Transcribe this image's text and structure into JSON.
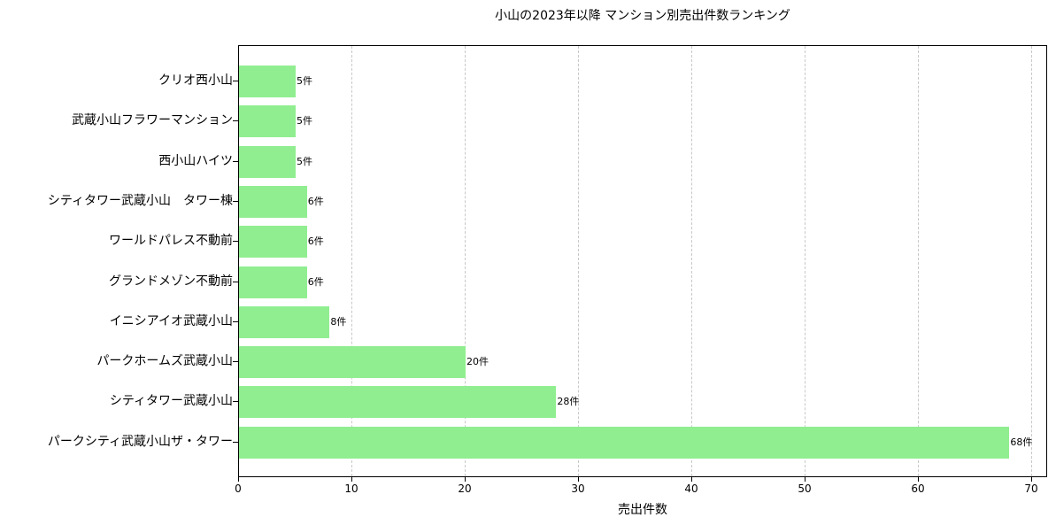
{
  "chart_data": {
    "type": "bar",
    "orientation": "horizontal",
    "title": "小山の2023年以降 マンション別売出件数ランキング",
    "xlabel": "売出件数",
    "ylabel": "",
    "xlim": [
      0,
      71.5
    ],
    "xticks": [
      0,
      10,
      20,
      30,
      40,
      50,
      60,
      70
    ],
    "grid": {
      "x": true,
      "style": "dashed"
    },
    "bar_color": "#90ee90",
    "value_suffix": "件",
    "categories": [
      "クリオ西小山",
      "武蔵小山フラワーマンション",
      "西小山ハイツ",
      "シティタワー武蔵小山　タワー棟",
      "ワールドパレス不動前",
      "グランドメゾン不動前",
      "イニシアイオ武蔵小山",
      "パークホームズ武蔵小山",
      "シティタワー武蔵小山",
      "パークシティ武蔵小山ザ・タワー"
    ],
    "values": [
      5,
      5,
      5,
      6,
      6,
      6,
      8,
      20,
      28,
      68
    ],
    "labels": [
      "5件",
      "5件",
      "5件",
      "6件",
      "6件",
      "6件",
      "8件",
      "20件",
      "28件",
      "68件"
    ]
  }
}
